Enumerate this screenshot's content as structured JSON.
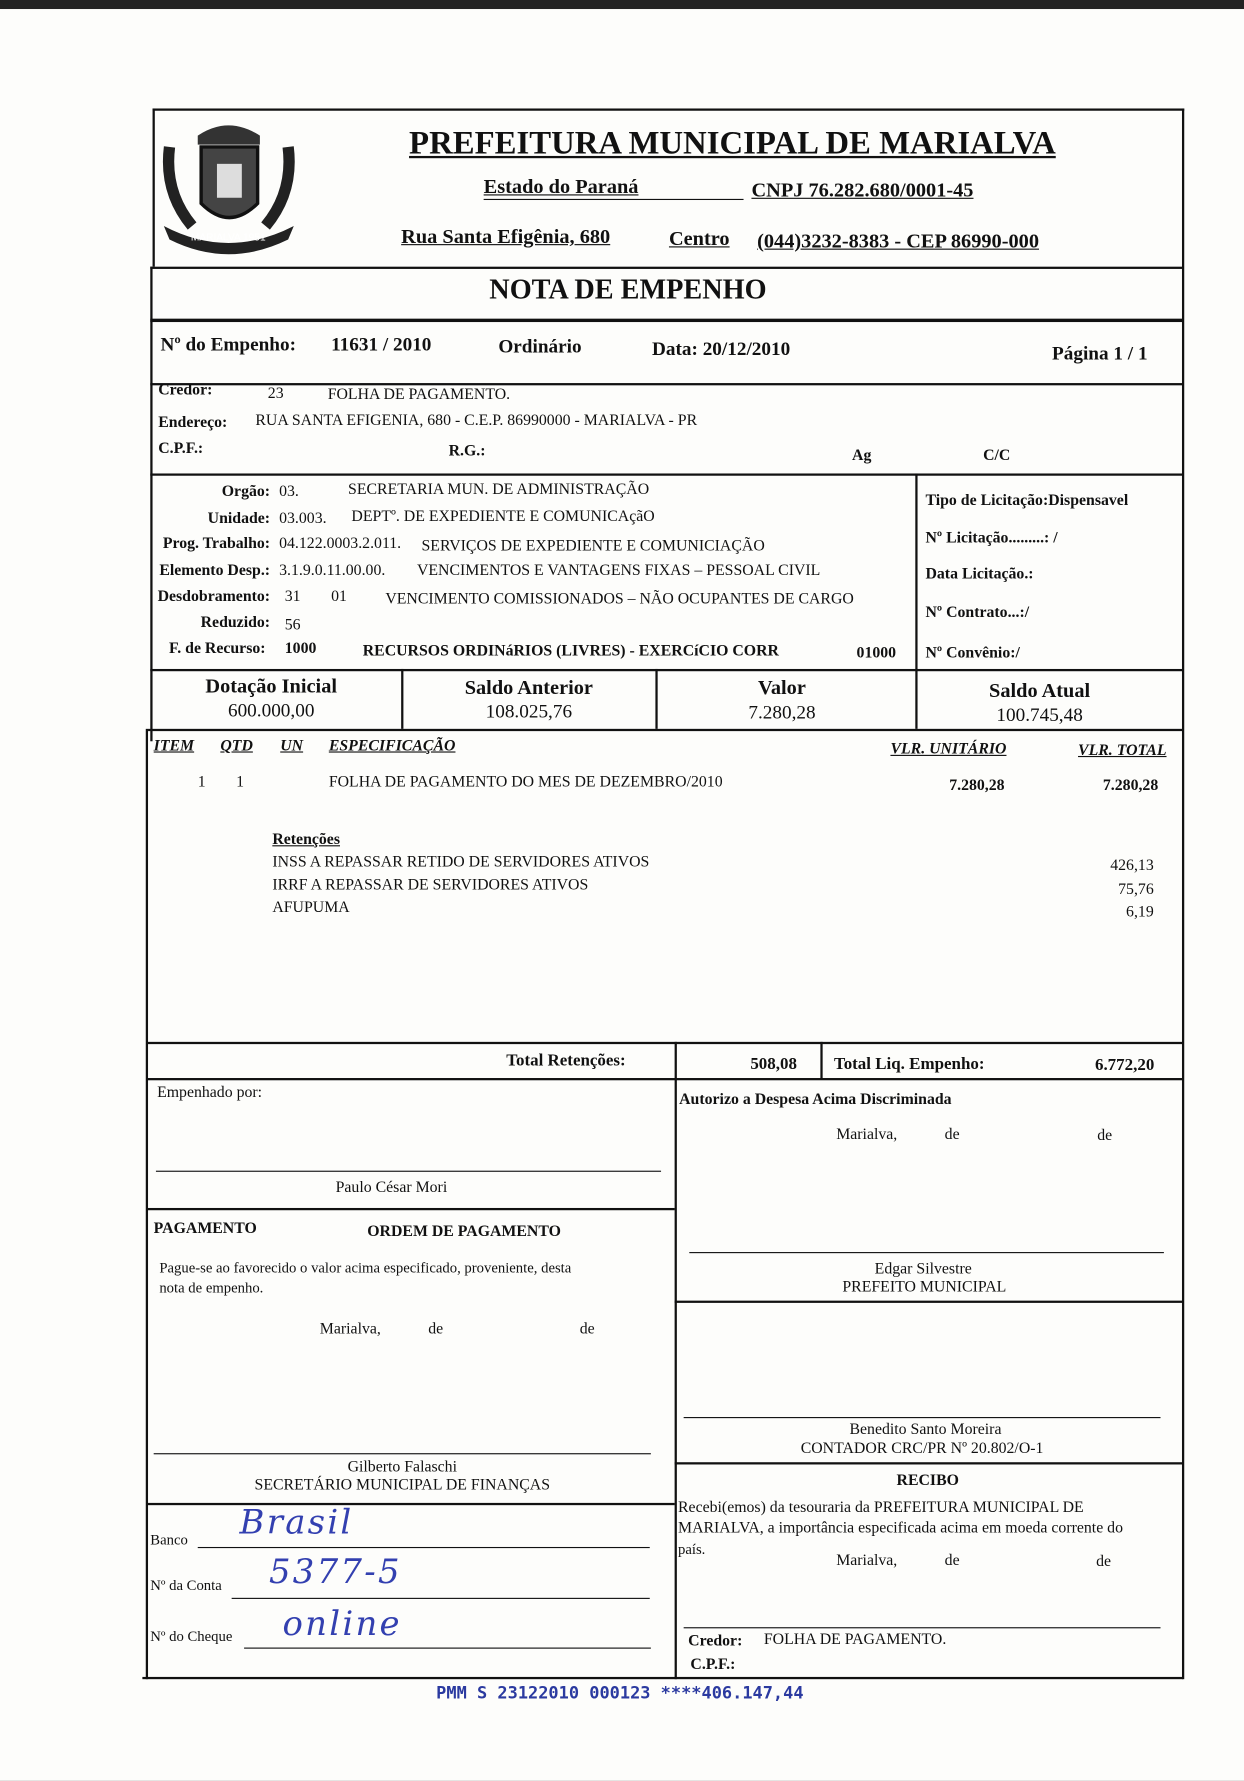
{
  "header": {
    "title": "PREFEITURA MUNICIPAL DE MARIALVA",
    "estado": "Estado do Paraná",
    "cnpj": "CNPJ 76.282.680/0001-45",
    "endereco": "Rua Santa Efigênia, 680",
    "bairro": "Centro",
    "fone": "(044)3232-8383  -  CEP 86990-000",
    "logo_text": "MARIALVA 1951"
  },
  "doc_title": "NOTA  DE  EMPENHO",
  "empenho": {
    "label": "Nº do Empenho:",
    "numero": "11631 / 2010",
    "tipo": "Ordinário",
    "data": "Data: 20/12/2010",
    "pagina": "Página  1 / 1"
  },
  "credor": {
    "label": "Credor:",
    "codigo": "23",
    "nome": "FOLHA DE PAGAMENTO.",
    "endereco_label": "Endereço:",
    "endereco": "RUA SANTA EFIGENIA, 680  -  C.E.P. 86990000  -  MARIALVA  -  PR",
    "cpf_label": "C.P.F.:",
    "rg_label": "R.G.:",
    "ag_label": "Ag",
    "cc_label": "C/C"
  },
  "dotacao": {
    "orgao_label": "Orgão:",
    "orgao": "03.",
    "orgao_desc": "SECRETARIA MUN. DE ADMINISTRAÇÃO",
    "unidade_label": "Unidade:",
    "unidade": "03.003.",
    "unidade_desc": "DEPTº. DE EXPEDIENTE E COMUNICAçãO",
    "prog_label": "Prog. Trabalho:",
    "prog": "04.122.0003.2.011.",
    "prog_desc": "SERVIÇOS DE EXPEDIENTE E COMUNICIAÇÃO",
    "elem_label": "Elemento Desp.:",
    "elem": "3.1.9.0.11.00.00.",
    "elem_desc": "VENCIMENTOS E VANTAGENS FIXAS – PESSOAL CIVIL",
    "desd_label": "Desdobramento:",
    "desd1": "31",
    "desd2": "01",
    "desd_desc": "VENCIMENTO COMISSIONADOS – NÃO OCUPANTES DE CARGO",
    "red_label": "Reduzido:",
    "red": "56",
    "fonte_label": "F. de Recurso:",
    "fonte": "1000",
    "fonte_desc": "RECURSOS ORDINáRIOS (LIVRES) - EXERCíCIO CORR",
    "fonte_cod": "01000"
  },
  "licitacao": {
    "tipo": "Tipo de Licitação:Dispensavel",
    "numero": "Nº Licitação.........: /",
    "data": "Data Licitação.:",
    "contrato": "Nº Contrato...:/",
    "convenio": "Nº Convênio:/"
  },
  "saldos": [
    {
      "label": "Dotação Inicial",
      "value": "600.000,00"
    },
    {
      "label": "Saldo Anterior",
      "value": "108.025,76"
    },
    {
      "label": "Valor",
      "value": "7.280,28"
    },
    {
      "label": "Saldo Atual",
      "value": "100.745,48"
    }
  ],
  "items": {
    "headers": {
      "item": "ITEM",
      "qtd": "QTD",
      "un": "UN",
      "espec": "ESPECIFICAÇÃO",
      "unit": "VLR. UNITÁRIO",
      "total": "VLR. TOTAL"
    },
    "rows": [
      {
        "item": "1",
        "qtd": "1",
        "un": "",
        "espec": "FOLHA DE PAGAMENTO DO MES DE DEZEMBRO/2010",
        "unit": "7.280,28",
        "total": "7.280,28"
      }
    ]
  },
  "retencoes": {
    "title": "Retenções",
    "rows": [
      {
        "desc": "INSS A REPASSAR RETIDO DE SERVIDORES ATIVOS",
        "value": "426,13"
      },
      {
        "desc": "IRRF A REPASSAR DE SERVIDORES ATIVOS",
        "value": "75,76"
      },
      {
        "desc": "AFUPUMA",
        "value": "6,19"
      }
    ]
  },
  "totais": {
    "ret_label": "Total Retenções:",
    "ret": "508,08",
    "liq_label": "Total Liq. Empenho:",
    "liq": "6.772,20"
  },
  "empenhado": {
    "label": "Empenhado por:",
    "nome": "Paulo César Mori"
  },
  "autorizo": {
    "label": "Autorizo a Despesa Acima Discriminada",
    "cidade": "Marialva,",
    "de1": "de",
    "de2": "de",
    "nome": "Edgar Silvestre",
    "cargo": "PREFEITO MUNICIPAL"
  },
  "pagamento": {
    "label": "PAGAMENTO",
    "ordem": "ORDEM DE PAGAMENTO",
    "texto1": "Pague-se ao favorecido o valor acima especificado, proveniente, desta",
    "texto2": "nota de empenho.",
    "cidade": "Marialva,",
    "de1": "de",
    "de2": "de",
    "nome": "Gilberto Falaschi",
    "cargo": "SECRETÁRIO MUNICIPAL DE FINANÇAS"
  },
  "contador": {
    "nome": "Benedito Santo Moreira",
    "cargo": "CONTADOR CRC/PR Nº 20.802/O-1"
  },
  "banco": {
    "banco_label": "Banco",
    "banco": "Brasil",
    "conta_label": "Nº da Conta",
    "conta": "5377-5",
    "cheque_label": "Nº do Cheque",
    "cheque": "online"
  },
  "recibo": {
    "title": "RECIBO",
    "texto1": "Recebi(emos)  da  tesouraria  da  PREFEITURA  MUNICIPAL  DE",
    "texto2": "MARIALVA, a importância especificada acima em moeda corrente do",
    "texto3": "país.",
    "cidade": "Marialva,",
    "de1": "de",
    "de2": "de",
    "credor_label": "Credor:",
    "credor": "FOLHA DE PAGAMENTO.",
    "cpf_label": "C.P.F.:"
  },
  "stamp": "PMM S 23122010 000123 ****406.147,44"
}
